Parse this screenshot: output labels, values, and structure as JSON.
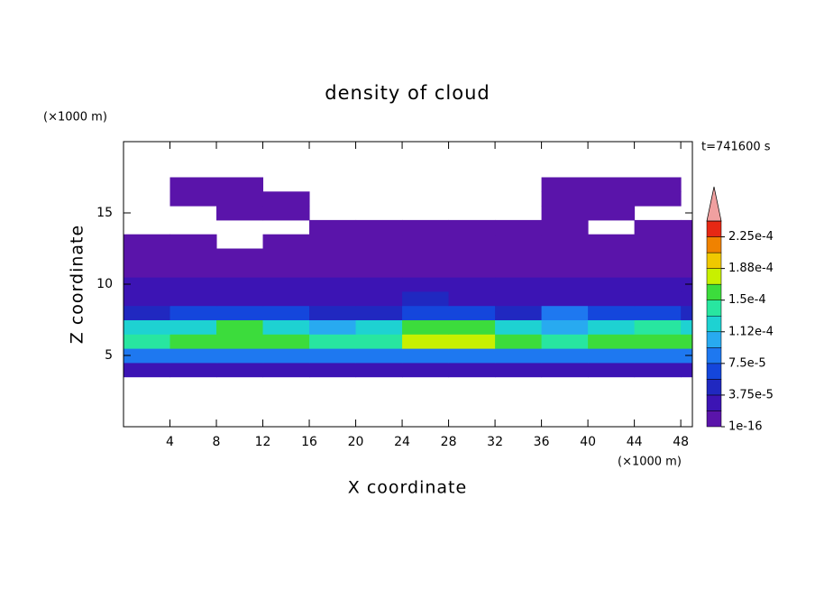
{
  "chart_data": {
    "type": "contour",
    "title": "density of cloud",
    "x_label": "X coordinate",
    "y_label": "Z coordinate",
    "x_unit": "(×1000 m)",
    "y_unit": "(×1000 m)",
    "time_label": "t=741600 s",
    "xlim": [
      0,
      49
    ],
    "ylim": [
      0,
      20
    ],
    "xticks": [
      4,
      8,
      12,
      16,
      20,
      24,
      28,
      32,
      36,
      40,
      44,
      48
    ],
    "yticks": [
      5,
      10,
      15
    ],
    "x": [
      0,
      4,
      8,
      12,
      16,
      20,
      24,
      28,
      32,
      36,
      40,
      44,
      48
    ],
    "x_step": 4,
    "z": [
      3.5,
      4.5,
      5.5,
      6.5,
      7.5,
      8.5,
      9.5,
      10.5,
      11.5,
      12.5,
      13.5,
      14.5,
      15.5,
      16.5
    ],
    "z_step": 1,
    "values": [
      [
        3e-05,
        3e-05,
        3e-05,
        3e-05,
        3e-05,
        3e-05,
        3e-05,
        3e-05,
        3e-05,
        3e-05,
        3e-05,
        3e-05,
        3e-05
      ],
      [
        8e-05,
        8.5e-05,
        8e-05,
        8e-05,
        7.8e-05,
        8e-05,
        9e-05,
        9e-05,
        8.5e-05,
        8e-05,
        8e-05,
        8.5e-05,
        8e-05
      ],
      [
        0.00014,
        0.00015,
        0.00016,
        0.00015,
        0.00014,
        0.000145,
        0.00017,
        0.00018,
        0.00016,
        0.00014,
        0.00015,
        0.00016,
        0.00015
      ],
      [
        0.00012,
        0.00013,
        0.00015,
        0.00013,
        0.00011,
        0.00012,
        0.00015,
        0.00016,
        0.00013,
        0.00011,
        0.00013,
        0.00014,
        0.00012
      ],
      [
        5e-05,
        6e-05,
        7e-05,
        6e-05,
        5e-05,
        5.5e-05,
        6e-05,
        6e-05,
        5.5e-05,
        8e-05,
        6e-05,
        6e-05,
        5e-05
      ],
      [
        3e-05,
        3.5e-05,
        3.5e-05,
        3e-05,
        3e-05,
        3.5e-05,
        4e-05,
        3.5e-05,
        3e-05,
        3.5e-05,
        3e-05,
        3e-05,
        3e-05
      ],
      [
        2e-05,
        2e-05,
        2e-05,
        2e-05,
        2.2e-05,
        2.5e-05,
        2.2e-05,
        2e-05,
        2e-05,
        2e-05,
        2e-05,
        2e-05,
        2e-05
      ],
      [
        1e-05,
        1e-05,
        1e-05,
        1e-05,
        1e-05,
        1.2e-05,
        1.2e-05,
        1e-05,
        1e-05,
        1e-05,
        1e-05,
        1e-05,
        1e-05
      ],
      [
        5e-06,
        5e-06,
        5e-06,
        5e-06,
        5e-06,
        5e-06,
        5e-06,
        5e-06,
        5e-06,
        5e-06,
        5e-06,
        5e-06,
        5e-06
      ],
      [
        1e-06,
        1e-06,
        null,
        1e-06,
        1e-06,
        1e-06,
        1e-06,
        1e-06,
        1e-06,
        1e-06,
        1e-06,
        1e-06,
        1e-06
      ],
      [
        null,
        null,
        null,
        null,
        1e-06,
        1e-06,
        1e-06,
        1e-06,
        1e-06,
        1e-06,
        null,
        1e-06,
        1e-06
      ],
      [
        null,
        null,
        1e-06,
        1e-06,
        null,
        null,
        null,
        null,
        null,
        1e-06,
        1e-06,
        null,
        null
      ],
      [
        null,
        1e-06,
        1e-06,
        1e-06,
        null,
        null,
        null,
        null,
        null,
        1e-06,
        1e-06,
        1e-06,
        null
      ],
      [
        null,
        1e-06,
        1e-06,
        null,
        null,
        null,
        null,
        null,
        null,
        1e-06,
        1e-06,
        1e-06,
        null
      ]
    ],
    "levels": [
      1e-16,
      1.875e-05,
      3.75e-05,
      5.625e-05,
      7.5e-05,
      9.375e-05,
      0.0001125,
      0.00013125,
      0.00015,
      0.00016875,
      0.0001875,
      0.00020625,
      0.000225,
      0.00024375
    ],
    "colors": [
      "#5a14aa",
      "#3c14b4",
      "#2028c0",
      "#1446dc",
      "#1e78f0",
      "#28aaf0",
      "#1ed2d2",
      "#28e6a0",
      "#3cdc3c",
      "#c8f000",
      "#f0c800",
      "#f08200",
      "#e62814"
    ],
    "overflow_color": "#f0a0a0",
    "colorbar_ticks": [
      {
        "value": 1e-16,
        "label": "1e-16"
      },
      {
        "value": 3.75e-05,
        "label": "3.75e-5"
      },
      {
        "value": 7.5e-05,
        "label": "7.5e-5"
      },
      {
        "value": 0.0001125,
        "label": "1.12e-4"
      },
      {
        "value": 0.00015,
        "label": "1.5e-4"
      },
      {
        "value": 0.0001875,
        "label": "1.88e-4"
      },
      {
        "value": 0.000225,
        "label": "2.25e-4"
      }
    ]
  }
}
